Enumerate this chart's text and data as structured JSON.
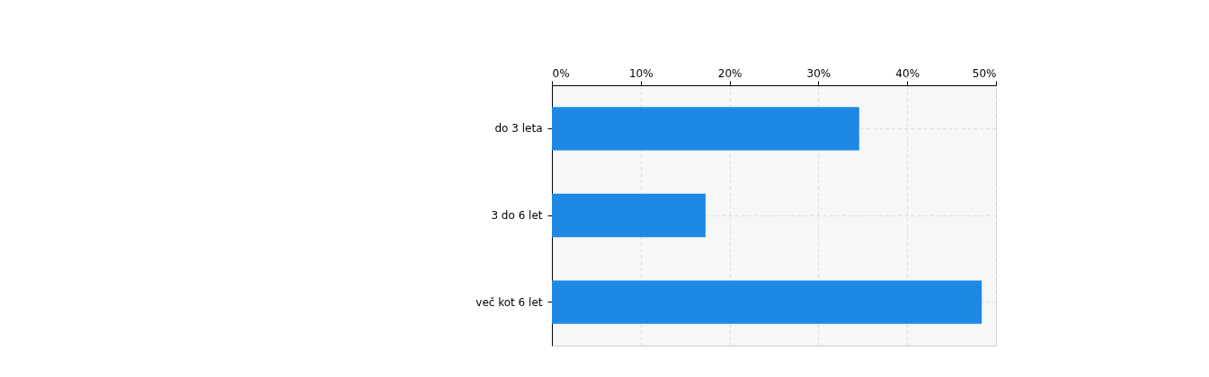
{
  "chart_data": {
    "type": "bar",
    "orientation": "horizontal",
    "categories": [
      "do 3 leta",
      "3 do 6 let",
      "več kot 6 let"
    ],
    "values": [
      34.6,
      17.3,
      48.4
    ],
    "color": "#1e88e5",
    "xlim": [
      0,
      50
    ],
    "xticks": [
      {
        "value": 0,
        "label": "0%"
      },
      {
        "value": 10,
        "label": "10%"
      },
      {
        "value": 20,
        "label": "20%"
      },
      {
        "value": 30,
        "label": "30%"
      },
      {
        "value": 40,
        "label": "40%"
      },
      {
        "value": 50,
        "label": "50%"
      }
    ],
    "grid": true
  }
}
